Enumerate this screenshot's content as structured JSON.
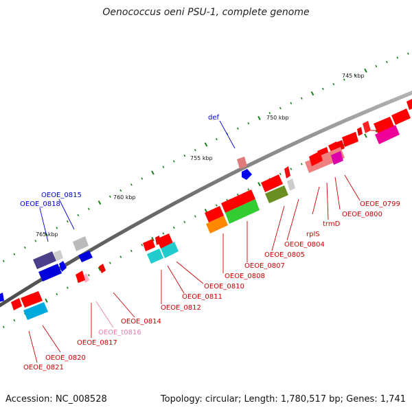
{
  "title": "Oenococcus oeni PSU-1, complete genome",
  "footer": {
    "accession": "Accession: NC_008528",
    "summary": "Topology: circular; Length: 1,780,517 bp; Genes: 1,741"
  },
  "colors": {
    "top_label": "#0000cc",
    "bottom_label": "#cc0000",
    "trna_label": "#e57fb0",
    "tick": "#1a7f1a",
    "backbone": "#7a7a7a"
  },
  "scale_labels": [
    "745 kbp",
    "750 kbp",
    "755 kbp",
    "760 kbp",
    "765 kbp"
  ],
  "top_gene_labels": [
    "def",
    "OEOE_0815",
    "OEOE_0818"
  ],
  "bottom_gene_labels": [
    "OEOE_0799",
    "OEOE_0800",
    "trmD",
    "rplS",
    "OEOE_0804",
    "OEOE_0805",
    "OEOE_0807",
    "OEOE_0808",
    "OEOE_0810",
    "OEOE_0811",
    "OEOE_0812",
    "OEOE_0814",
    "OEOE_t0816",
    "OEOE_0817",
    "OEOE_0820",
    "OEOE_0821"
  ]
}
